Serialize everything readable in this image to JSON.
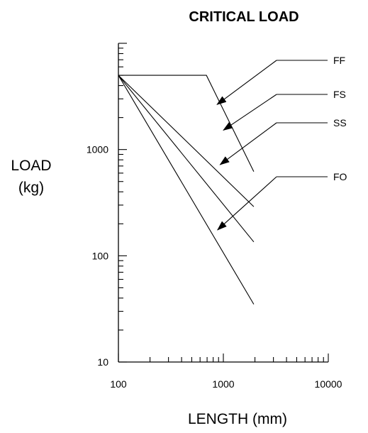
{
  "chart_data": {
    "type": "line",
    "title": "CRITICAL LOAD",
    "ylabel": [
      "LOAD",
      "(kg)"
    ],
    "xlabel": "LENGTH (mm)",
    "x_scale": "log",
    "y_scale": "log",
    "xlim": [
      100,
      10000
    ],
    "ylim": [
      10,
      10000
    ],
    "x_ticks": [
      100,
      1000,
      10000
    ],
    "x_tick_labels": [
      "100",
      "1000",
      "10000"
    ],
    "y_ticks": [
      10,
      100,
      1000
    ],
    "y_tick_labels": [
      "10",
      "100",
      "1000"
    ],
    "grid": false,
    "series": [
      {
        "name": "FF",
        "points": [
          [
            100,
            5000
          ],
          [
            690,
            5000
          ],
          [
            1950,
            620
          ]
        ],
        "callout_at": [
          870,
          2650
        ]
      },
      {
        "name": "FS",
        "points": [
          [
            100,
            5000
          ],
          [
            1950,
            290
          ]
        ],
        "callout_at": [
          1000,
          1520
        ]
      },
      {
        "name": "SS",
        "points": [
          [
            100,
            5000
          ],
          [
            1950,
            135
          ]
        ],
        "callout_at": [
          930,
          720
        ]
      },
      {
        "name": "FO",
        "points": [
          [
            100,
            5000
          ],
          [
            1950,
            35
          ]
        ],
        "callout_at": [
          880,
          175
        ]
      }
    ]
  }
}
